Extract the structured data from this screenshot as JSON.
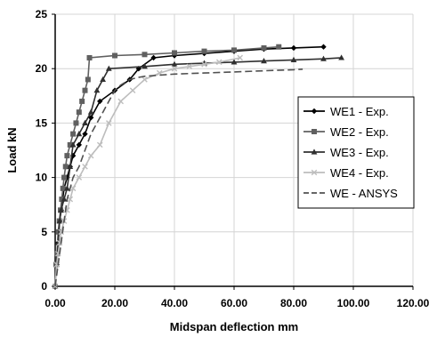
{
  "chart_data": {
    "type": "line",
    "title": "",
    "xlabel": "Midspan deflection mm",
    "ylabel": "Load kN",
    "xlim": [
      0,
      120
    ],
    "ylim": [
      0,
      25
    ],
    "x_ticks": [
      0,
      20,
      40,
      60,
      80,
      100,
      120
    ],
    "x_tick_labels": [
      "0.00",
      "20.00",
      "40.00",
      "60.00",
      "80.00",
      "100.00",
      "120.00"
    ],
    "y_ticks": [
      0,
      5,
      10,
      15,
      20,
      25
    ],
    "y_tick_labels": [
      "0",
      "5",
      "10",
      "15",
      "20",
      "25"
    ],
    "grid": "major, light",
    "legend_position": "right",
    "series": [
      {
        "name": "WE1  - Exp.",
        "color": "#000000",
        "marker": "diamond",
        "dash": "",
        "x": [
          0,
          0.5,
          1,
          1.5,
          2,
          2.5,
          3,
          4,
          5,
          6,
          8,
          10,
          12,
          15,
          20,
          25,
          28,
          33,
          40,
          50,
          60,
          70,
          80,
          90
        ],
        "y": [
          0,
          2,
          4,
          6,
          7,
          8,
          9,
          10,
          11,
          12,
          13,
          14,
          15.5,
          17,
          18,
          19,
          20,
          21,
          21.2,
          21.4,
          21.6,
          21.8,
          21.9,
          22
        ]
      },
      {
        "name": "WE2  - Exp.",
        "color": "#606060",
        "marker": "square",
        "dash": "",
        "x": [
          0,
          0.3,
          0.6,
          1,
          1.4,
          1.8,
          2.2,
          2.6,
          3,
          3.5,
          4,
          5,
          6,
          7,
          8,
          9,
          10,
          11,
          11.5,
          20,
          30,
          40,
          50,
          60,
          70,
          75
        ],
        "y": [
          0,
          2,
          3,
          5,
          6,
          7,
          8,
          9,
          10,
          11,
          12,
          13,
          14,
          15,
          16,
          17,
          18,
          19,
          21,
          21.2,
          21.3,
          21.45,
          21.6,
          21.7,
          21.9,
          22
        ]
      },
      {
        "name": "WE3  - Exp.",
        "color": "#303030",
        "marker": "triangle",
        "dash": "",
        "x": [
          0,
          0.5,
          1,
          1.5,
          2,
          3,
          4,
          5,
          6,
          8,
          10,
          12,
          14,
          16,
          18,
          30,
          40,
          50,
          60,
          70,
          80,
          90,
          96
        ],
        "y": [
          0,
          2,
          4,
          6,
          7,
          8,
          9,
          11,
          13,
          14,
          15,
          16,
          18,
          19,
          20,
          20.2,
          20.4,
          20.5,
          20.6,
          20.7,
          20.8,
          20.9,
          21
        ]
      },
      {
        "name": "WE4  - Exp.",
        "color": "#bdbdbd",
        "marker": "x",
        "dash": "",
        "x": [
          0,
          0.5,
          1,
          1.5,
          2,
          3,
          4,
          5,
          6,
          8,
          10,
          12,
          15,
          18,
          22,
          26,
          30,
          35,
          40,
          45,
          50,
          55,
          62
        ],
        "y": [
          0,
          2,
          3,
          4,
          5,
          6,
          7,
          8,
          9,
          10,
          11,
          12,
          13,
          15,
          17,
          18,
          19,
          19.6,
          20,
          20.2,
          20.4,
          20.6,
          21
        ]
      },
      {
        "name": "WE - ANSYS",
        "color": "#505050",
        "marker": "dash",
        "dash": "8,4",
        "x": [
          0,
          1,
          2,
          3,
          4,
          5,
          6,
          8,
          10,
          12,
          15,
          18,
          20,
          22,
          25,
          28,
          30,
          35,
          40,
          50,
          60,
          70,
          80,
          83
        ],
        "y": [
          0,
          2,
          4,
          6,
          8,
          9,
          10,
          11,
          12.5,
          14,
          15.5,
          17,
          18,
          18.5,
          19,
          19.2,
          19.3,
          19.4,
          19.5,
          19.6,
          19.7,
          19.8,
          19.9,
          19.95
        ]
      }
    ]
  }
}
